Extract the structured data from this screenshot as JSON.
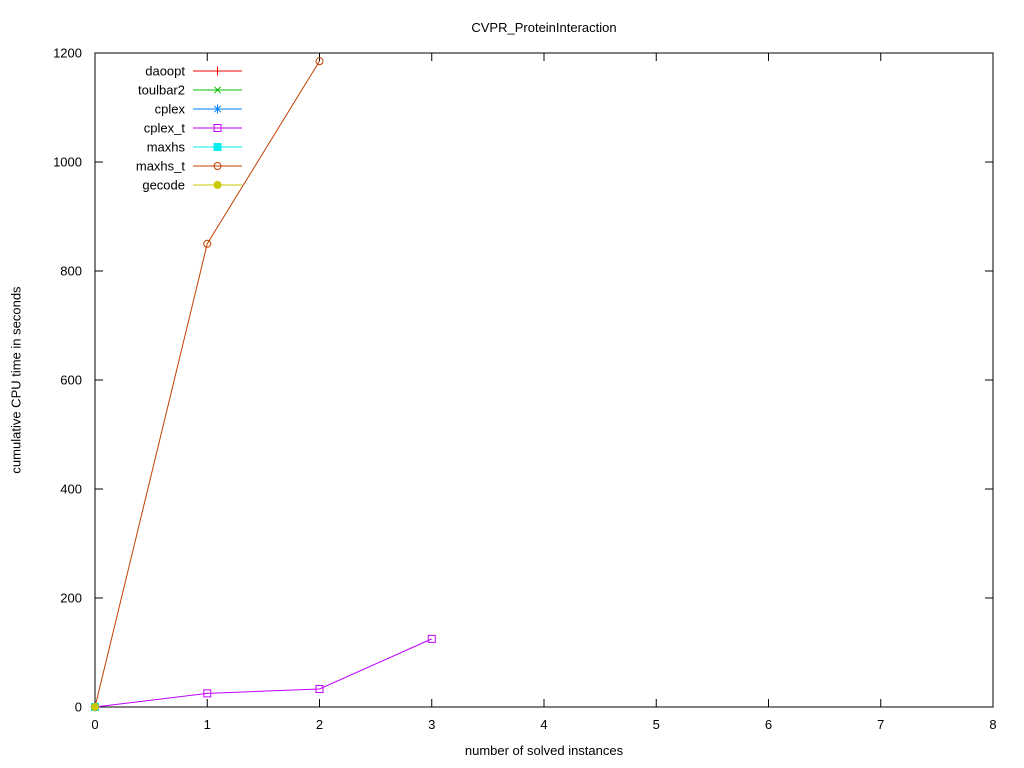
{
  "figure": {
    "background": "#ffffff",
    "border_color": "#000000",
    "text_color": "#000000"
  },
  "chart_data": {
    "type": "line",
    "title": "CVPR_ProteinInteraction",
    "xlabel": "number of solved instances",
    "ylabel": "cumulative CPU time in seconds",
    "xlim": [
      0,
      8
    ],
    "ylim": [
      0,
      1200
    ],
    "xticks": [
      0,
      1,
      2,
      3,
      4,
      5,
      6,
      7,
      8
    ],
    "yticks": [
      0,
      200,
      400,
      600,
      800,
      1000,
      1200
    ],
    "grid": false,
    "legend_position": "top-left",
    "legend_entries": [
      "daoopt",
      "toulbar2",
      "cplex",
      "cplex_t",
      "maxhs",
      "maxhs_t",
      "gecode"
    ],
    "series": [
      {
        "name": "daoopt",
        "color": "#ff0000",
        "marker": "plus",
        "points": [
          [
            0,
            0
          ]
        ]
      },
      {
        "name": "toulbar2",
        "color": "#00c000",
        "marker": "cross",
        "points": [
          [
            0,
            0
          ]
        ]
      },
      {
        "name": "cplex",
        "color": "#0080ff",
        "marker": "asterisk",
        "points": [
          [
            0,
            0
          ]
        ]
      },
      {
        "name": "cplex_t",
        "color": "#c000ff",
        "marker": "square-open",
        "points": [
          [
            0,
            0
          ],
          [
            1,
            25
          ],
          [
            2,
            33
          ],
          [
            3,
            125
          ]
        ]
      },
      {
        "name": "maxhs",
        "color": "#00eeee",
        "marker": "square-filled",
        "points": [
          [
            0,
            0
          ]
        ]
      },
      {
        "name": "maxhs_t",
        "color": "#c04000",
        "marker": "circle-open",
        "points": [
          [
            0,
            0
          ],
          [
            1,
            850
          ],
          [
            2,
            1185
          ]
        ]
      },
      {
        "name": "gecode",
        "color": "#c8c800",
        "marker": "circle-filled",
        "points": [
          [
            0,
            0
          ]
        ]
      }
    ]
  }
}
